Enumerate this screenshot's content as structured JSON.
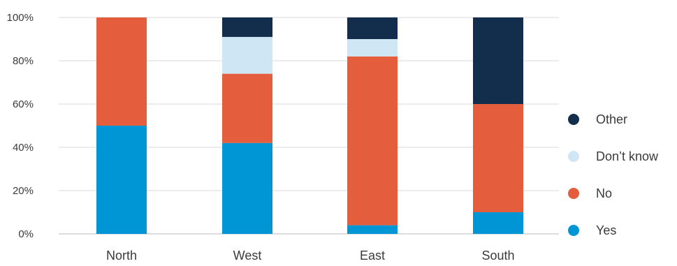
{
  "chart_data": {
    "type": "bar",
    "stacked": true,
    "normalized": true,
    "categories": [
      "North",
      "West",
      "East",
      "South"
    ],
    "series": [
      {
        "name": "Yes",
        "color": "#0096d6",
        "values": [
          50,
          42,
          4,
          10
        ]
      },
      {
        "name": "No",
        "color": "#e45d3c",
        "values": [
          50,
          32,
          78,
          50
        ]
      },
      {
        "name": "Don’t know",
        "color": "#cfe6f5",
        "values": [
          0,
          17,
          8,
          0
        ]
      },
      {
        "name": "Other",
        "color": "#122e4c",
        "values": [
          0,
          9,
          10,
          40
        ]
      }
    ],
    "ylim": [
      0,
      100
    ],
    "yticks": [
      "0%",
      "20%",
      "40%",
      "60%",
      "80%",
      "100%"
    ],
    "grid": true,
    "legend_position": "right",
    "legend_order": [
      "Other",
      "Don’t know",
      "No",
      "Yes"
    ],
    "title": "",
    "xlabel": "",
    "ylabel": ""
  }
}
